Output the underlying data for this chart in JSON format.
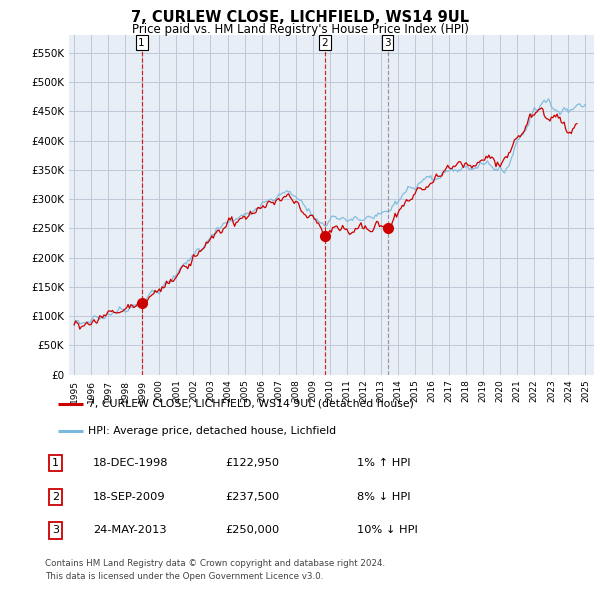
{
  "title": "7, CURLEW CLOSE, LICHFIELD, WS14 9UL",
  "subtitle": "Price paid vs. HM Land Registry's House Price Index (HPI)",
  "ylabel_ticks": [
    0,
    50000,
    100000,
    150000,
    200000,
    250000,
    300000,
    350000,
    400000,
    450000,
    500000,
    550000
  ],
  "ylabel_labels": [
    "£0",
    "£50K",
    "£100K",
    "£150K",
    "£200K",
    "£250K",
    "£300K",
    "£350K",
    "£400K",
    "£450K",
    "£500K",
    "£550K"
  ],
  "ylim": [
    0,
    580000
  ],
  "xlim_start": 1994.7,
  "xlim_end": 2025.5,
  "sale_dates_num": [
    1998.96,
    2009.72,
    2013.39
  ],
  "sale_prices": [
    122950,
    237500,
    250000
  ],
  "sale_labels": [
    "1",
    "2",
    "3"
  ],
  "sale_line_colors": [
    "#cc0000",
    "#cc0000",
    "#888888"
  ],
  "hpi_color": "#7ab8de",
  "price_color": "#cc0000",
  "marker_fill": "#cc0000",
  "grid_color": "#c0c8d8",
  "chart_bg": "#e8eef5",
  "background_color": "#ffffff",
  "legend_label_red": "7, CURLEW CLOSE, LICHFIELD, WS14 9UL (detached house)",
  "legend_label_blue": "HPI: Average price, detached house, Lichfield",
  "table_data": [
    [
      "1",
      "18-DEC-1998",
      "£122,950",
      "1% ↑ HPI"
    ],
    [
      "2",
      "18-SEP-2009",
      "£237,500",
      "8% ↓ HPI"
    ],
    [
      "3",
      "24-MAY-2013",
      "£250,000",
      "10% ↓ HPI"
    ]
  ],
  "footnote1": "Contains HM Land Registry data © Crown copyright and database right 2024.",
  "footnote2": "This data is licensed under the Open Government Licence v3.0."
}
